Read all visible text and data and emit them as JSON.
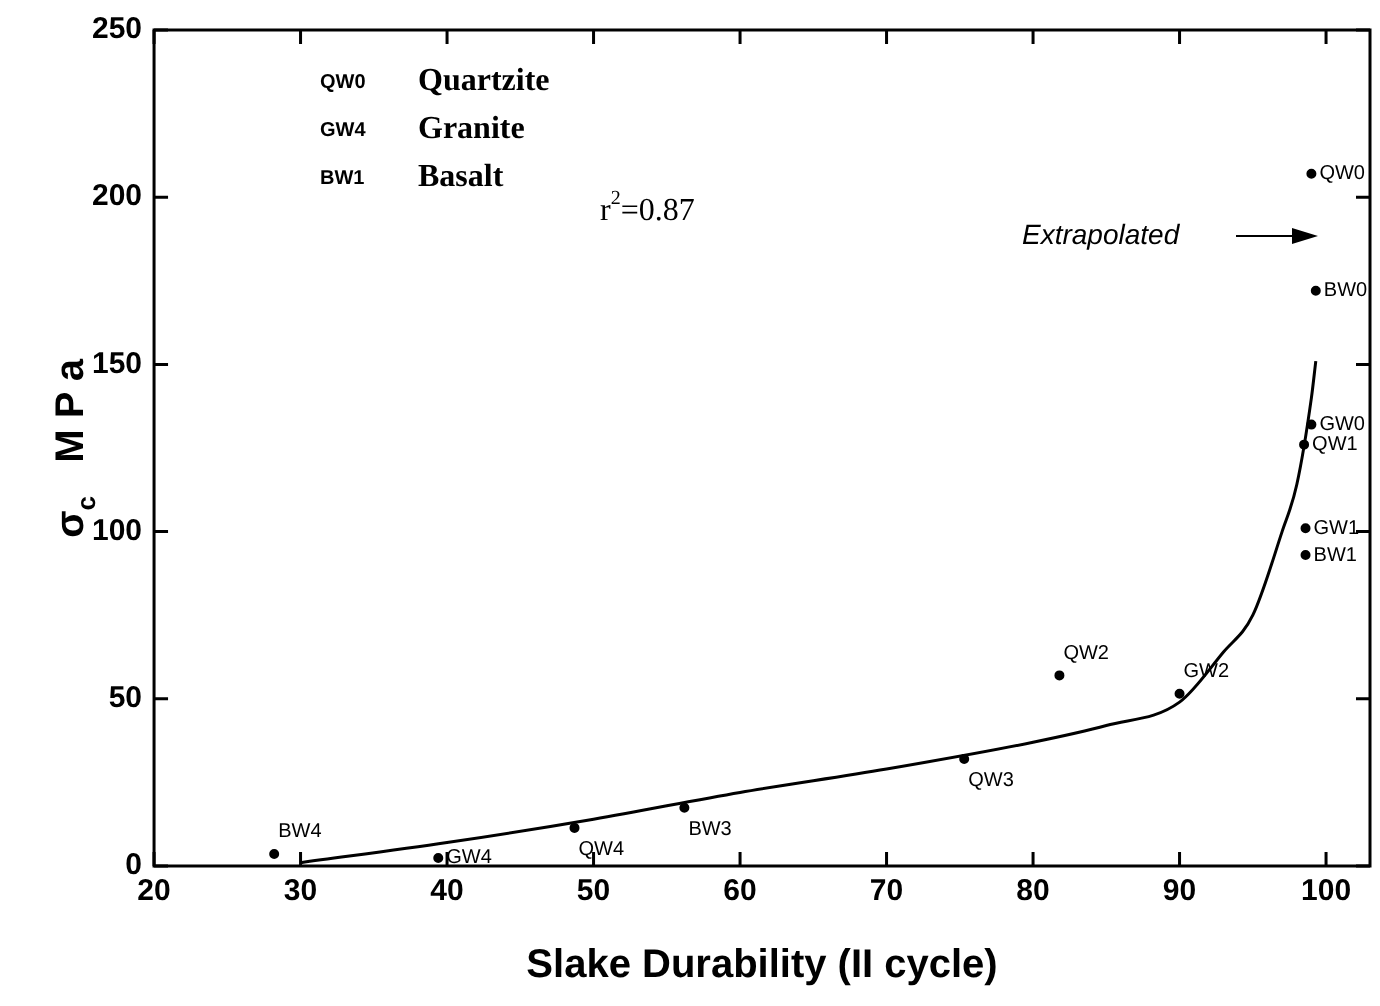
{
  "chart_data": {
    "type": "scatter",
    "xlabel": "Slake Durability (II cycle)",
    "ylabel": "σ$_{c}$   M P a",
    "xlim": [
      20,
      103
    ],
    "xticks": [
      20,
      30,
      40,
      50,
      60,
      70,
      80,
      90,
      100
    ],
    "ylim": [
      0,
      250
    ],
    "yticks": [
      0,
      50,
      100,
      150,
      200,
      250
    ],
    "grid": false,
    "legend": false,
    "annotations": [
      "QW0 Quartzite",
      "GW4 Granite",
      "BW1 Basalt",
      "r$^{2}$=0.87",
      "Extrapolated"
    ],
    "series": [
      {
        "type": "scatter",
        "color": "#000000",
        "marker": "circle",
        "x": [
          99,
          99.3,
          99,
          98.5,
          98.6,
          98.6,
          81.8,
          90,
          75.3,
          56.2,
          48.7,
          39.4,
          28.2
        ],
        "values": [
          207,
          172,
          132,
          126,
          101,
          93,
          57,
          51.5,
          32,
          17.4,
          11.4,
          2.4,
          3.6
        ],
        "value_labels": [
          "QW0",
          "BW0",
          "GW0",
          "QW1",
          "GW1",
          "BW1",
          "QW2",
          "GW2",
          "QW3",
          "BW3",
          "QW4",
          "GW4",
          "BW4"
        ]
      },
      {
        "type": "line",
        "color": "#000000",
        "marker": "none",
        "x": [
          30,
          40,
          50,
          60,
          70,
          80,
          85,
          90,
          93,
          95,
          97,
          98,
          99,
          99.3
        ],
        "values": [
          1,
          7,
          14,
          22,
          29,
          37,
          42,
          49,
          64,
          75,
          100,
          114,
          140,
          151
        ]
      }
    ]
  }
}
